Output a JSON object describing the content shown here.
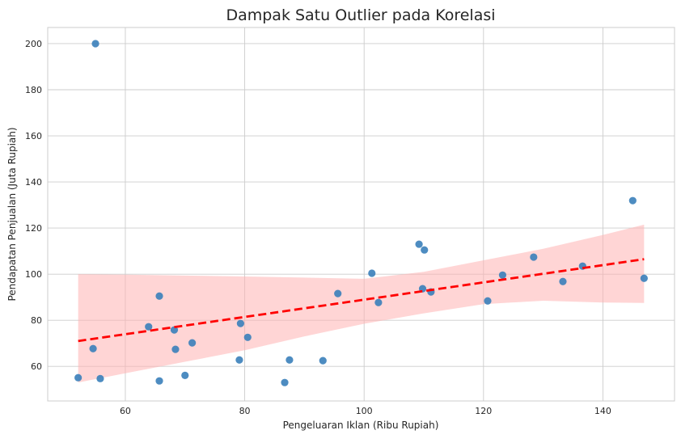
{
  "chart_data": {
    "type": "scatter",
    "title": "Dampak Satu Outlier pada Korelasi",
    "xlabel": "Pengeluaran Iklan (Ribu Rupiah)",
    "ylabel": "Pendapatan Penjualan (Juta Rupiah)",
    "xlim": [
      47,
      152
    ],
    "ylim": [
      45,
      207
    ],
    "xticks": [
      60,
      80,
      100,
      120,
      140
    ],
    "yticks": [
      60,
      80,
      100,
      120,
      140,
      160,
      180,
      200
    ],
    "grid": true,
    "point_color": "#3a80ba",
    "points": [
      [
        55.0,
        200.0
      ],
      [
        52.1,
        55.1
      ],
      [
        54.6,
        67.7
      ],
      [
        55.8,
        54.7
      ],
      [
        63.9,
        77.2
      ],
      [
        65.7,
        90.5
      ],
      [
        65.7,
        53.7
      ],
      [
        68.2,
        75.8
      ],
      [
        68.4,
        67.4
      ],
      [
        70.0,
        56.1
      ],
      [
        71.2,
        70.2
      ],
      [
        79.1,
        62.8
      ],
      [
        79.3,
        78.6
      ],
      [
        80.5,
        72.6
      ],
      [
        86.7,
        53.0
      ],
      [
        87.5,
        62.8
      ],
      [
        93.1,
        62.5
      ],
      [
        95.6,
        91.6
      ],
      [
        101.3,
        100.4
      ],
      [
        102.4,
        87.7
      ],
      [
        109.2,
        113.0
      ],
      [
        109.8,
        93.7
      ],
      [
        110.1,
        110.5
      ],
      [
        111.2,
        92.3
      ],
      [
        120.7,
        88.4
      ],
      [
        123.2,
        99.6
      ],
      [
        128.4,
        107.4
      ],
      [
        133.3,
        96.8
      ],
      [
        136.6,
        103.5
      ],
      [
        145.0,
        131.9
      ],
      [
        146.9,
        98.2
      ]
    ],
    "regression": {
      "color": "#ff0000",
      "style": "dashed",
      "x": [
        52.1,
        146.9
      ],
      "y": [
        71.0,
        106.5
      ]
    },
    "confidence_band": {
      "color": "#ffb3b3",
      "x": [
        52.1,
        60,
        70,
        80,
        90,
        100,
        110,
        120,
        130,
        140,
        146.9
      ],
      "upper": [
        100,
        99.8,
        99.4,
        99,
        98.5,
        98,
        101,
        106,
        111,
        117,
        121.5
      ],
      "lower": [
        53,
        57,
        62,
        67,
        73,
        78.5,
        83,
        87,
        88.5,
        87.7,
        87.5
      ]
    }
  }
}
